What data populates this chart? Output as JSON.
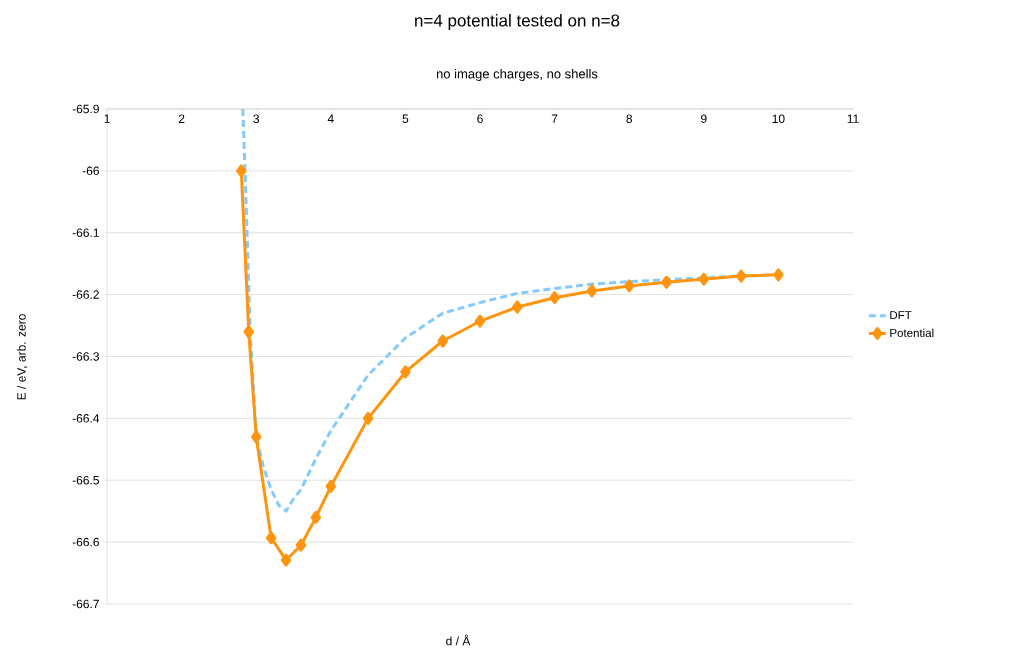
{
  "chart_data": {
    "type": "line",
    "title": "n=4 potential tested on n=8",
    "subtitle": "no image charges, no shells",
    "xlabel": "d / Å",
    "ylabel": "E / eV, arb. zero",
    "xlim": [
      1,
      11
    ],
    "xticks": [
      1,
      2,
      3,
      4,
      5,
      6,
      7,
      8,
      9,
      10,
      11
    ],
    "ylim": [
      -66.7,
      -65.9
    ],
    "yticks": [
      -66.7,
      -66.6,
      -66.5,
      -66.4,
      -66.3,
      -66.2,
      -66.1,
      -66,
      -65.9
    ],
    "grid": "y",
    "legend": "right",
    "series": [
      {
        "name": "DFT",
        "color": "#83caff",
        "line_style": "dashed",
        "marker": "none",
        "x": [
          2.82,
          2.85,
          2.92,
          3.0,
          3.1,
          3.2,
          3.3,
          3.4,
          3.5,
          3.6,
          3.8,
          4.0,
          4.5,
          5.0,
          5.5,
          6.0,
          6.5,
          7.0,
          7.5,
          8.0,
          8.5,
          9.0,
          9.5,
          10.0
        ],
        "values": [
          -65.9,
          -66.0,
          -66.26,
          -66.43,
          -66.48,
          -66.515,
          -66.54,
          -66.55,
          -66.53,
          -66.515,
          -66.465,
          -66.42,
          -66.33,
          -66.27,
          -66.23,
          -66.213,
          -66.198,
          -66.19,
          -66.183,
          -66.179,
          -66.176,
          -66.173,
          -66.17,
          -66.168
        ]
      },
      {
        "name": "Potential",
        "color": "#ff950e",
        "line_style": "solid",
        "marker": "diamond",
        "x": [
          2.8,
          2.9,
          3.0,
          3.2,
          3.4,
          3.6,
          3.8,
          4.0,
          4.5,
          5.0,
          5.5,
          6.0,
          6.5,
          7.0,
          7.5,
          8.0,
          8.5,
          9.0,
          9.5,
          10.0
        ],
        "values": [
          -66.0,
          -66.26,
          -66.43,
          -66.593,
          -66.629,
          -66.605,
          -66.56,
          -66.51,
          -66.4,
          -66.325,
          -66.275,
          -66.243,
          -66.22,
          -66.205,
          -66.194,
          -66.186,
          -66.18,
          -66.175,
          -66.17,
          -66.168
        ]
      }
    ]
  }
}
